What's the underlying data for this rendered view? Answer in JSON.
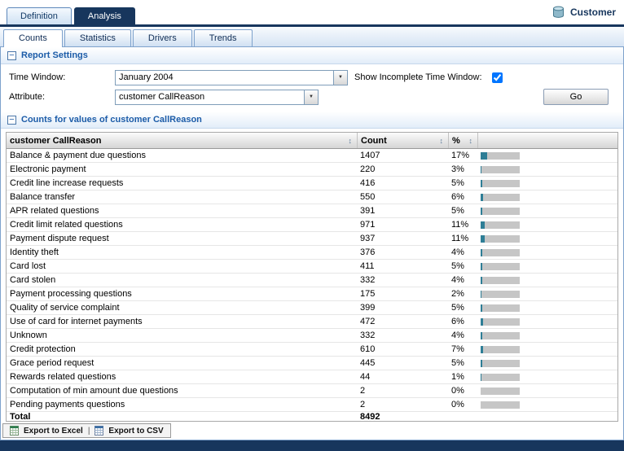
{
  "brand": {
    "label": "Customer"
  },
  "top_tabs": [
    {
      "label": "Definition",
      "active": false
    },
    {
      "label": "Analysis",
      "active": true
    }
  ],
  "sub_tabs": [
    {
      "label": "Counts",
      "active": true
    },
    {
      "label": "Statistics",
      "active": false
    },
    {
      "label": "Drivers",
      "active": false
    },
    {
      "label": "Trends",
      "active": false
    }
  ],
  "report_settings": {
    "title": "Report Settings",
    "time_window_label": "Time Window:",
    "time_window_value": "January 2004",
    "show_incomplete_label": "Show Incomplete Time Window:",
    "show_incomplete_checked": true,
    "attribute_label": "Attribute:",
    "attribute_value": "customer CallReason",
    "go_label": "Go"
  },
  "counts_section": {
    "title": "Counts for values of customer CallReason"
  },
  "table": {
    "columns": [
      "customer CallReason",
      "Count",
      "%"
    ],
    "rows": [
      {
        "label": "Balance & payment due questions",
        "count": 1407,
        "pct": 17
      },
      {
        "label": "Electronic payment",
        "count": 220,
        "pct": 3
      },
      {
        "label": "Credit line increase requests",
        "count": 416,
        "pct": 5
      },
      {
        "label": "Balance transfer",
        "count": 550,
        "pct": 6
      },
      {
        "label": "APR related questions",
        "count": 391,
        "pct": 5
      },
      {
        "label": "Credit limit related questions",
        "count": 971,
        "pct": 11
      },
      {
        "label": "Payment dispute request",
        "count": 937,
        "pct": 11
      },
      {
        "label": "Identity theft",
        "count": 376,
        "pct": 4
      },
      {
        "label": "Card lost",
        "count": 411,
        "pct": 5
      },
      {
        "label": "Card stolen",
        "count": 332,
        "pct": 4
      },
      {
        "label": "Payment processing questions",
        "count": 175,
        "pct": 2
      },
      {
        "label": "Quality of service complaint",
        "count": 399,
        "pct": 5
      },
      {
        "label": "Use of card for internet payments",
        "count": 472,
        "pct": 6
      },
      {
        "label": "Unknown",
        "count": 332,
        "pct": 4
      },
      {
        "label": "Credit protection",
        "count": 610,
        "pct": 7
      },
      {
        "label": "Grace period request",
        "count": 445,
        "pct": 5
      },
      {
        "label": "Rewards related questions",
        "count": 44,
        "pct": 1
      },
      {
        "label": "Computation of min amount due questions",
        "count": 2,
        "pct": 0
      },
      {
        "label": "Pending payments questions",
        "count": 2,
        "pct": 0
      }
    ],
    "total_label": "Total",
    "total_count": "8492"
  },
  "footer": {
    "export_excel_label": "Export to Excel",
    "separator": "|",
    "export_csv_label": "Export to CSV"
  },
  "icons": {
    "collapse": "−",
    "dropdown": "▼",
    "sort": "↕"
  },
  "colors": {
    "accent_navy": "#17365d",
    "section_title": "#1c5ca8",
    "bar_fill": "#2e7e96",
    "bar_bg": "#c6c6c6"
  }
}
